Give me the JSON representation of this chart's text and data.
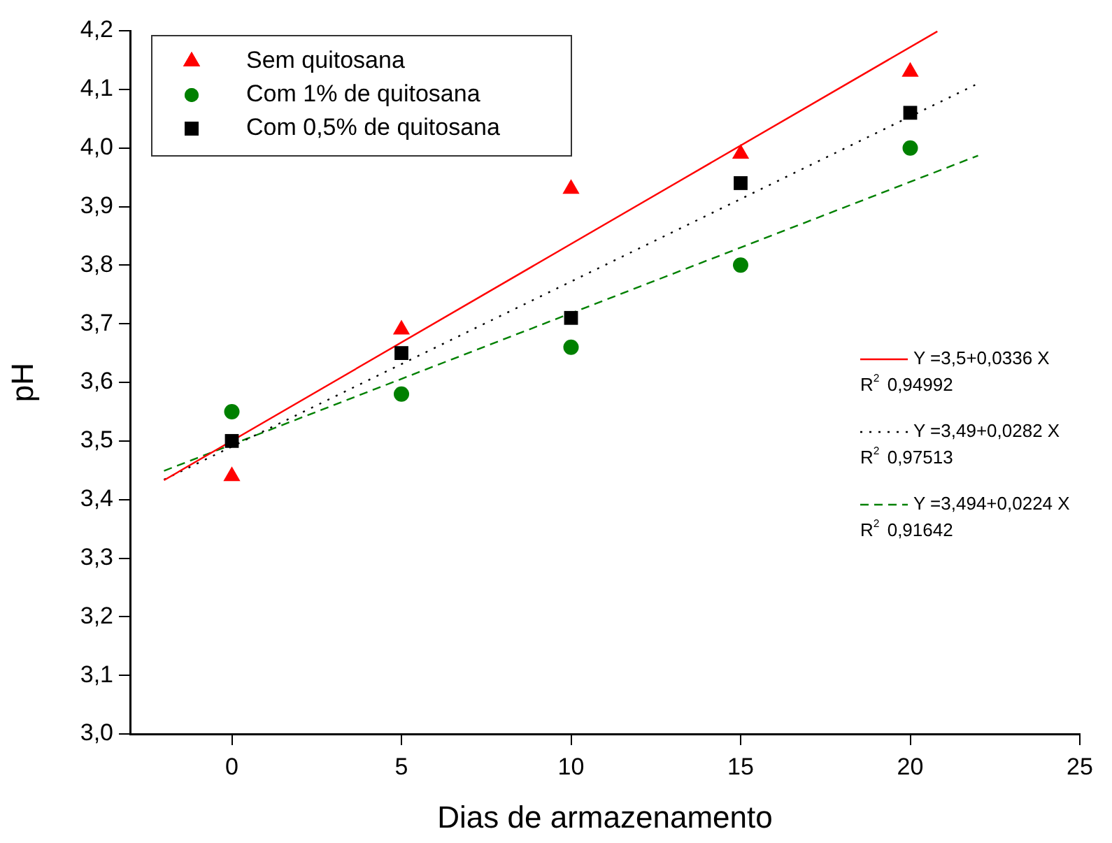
{
  "chart_data": {
    "type": "scatter",
    "xlabel": "Dias de armazenamento",
    "ylabel": "pH",
    "xlim": [
      -3,
      25
    ],
    "xticks": [
      0,
      5,
      10,
      15,
      20,
      25
    ],
    "ylim": [
      3.0,
      4.2
    ],
    "yticks": [
      {
        "value": 3.0,
        "label": "3,0"
      },
      {
        "value": 3.1,
        "label": "3,1"
      },
      {
        "value": 3.2,
        "label": "3,2"
      },
      {
        "value": 3.3,
        "label": "3,3"
      },
      {
        "value": 3.4,
        "label": "3,4"
      },
      {
        "value": 3.5,
        "label": "3,5"
      },
      {
        "value": 3.6,
        "label": "3,6"
      },
      {
        "value": 3.7,
        "label": "3,7"
      },
      {
        "value": 3.8,
        "label": "3,8"
      },
      {
        "value": 3.9,
        "label": "3,9"
      },
      {
        "value": 4.0,
        "label": "4,0"
      },
      {
        "value": 4.1,
        "label": "4,1"
      },
      {
        "value": 4.2,
        "label": "4,2"
      }
    ],
    "grid": false,
    "legend": "top left",
    "x": [
      0,
      5,
      10,
      15,
      20
    ],
    "series": [
      {
        "name": "Sem quitosana",
        "color": "#ff0000",
        "marker": "triangle",
        "values": [
          3.44,
          3.69,
          3.93,
          3.99,
          4.13
        ]
      },
      {
        "name": "Com 1% de quitosana",
        "color": "#008000",
        "marker": "circle",
        "values": [
          3.55,
          3.58,
          3.66,
          3.8,
          4.0
        ]
      },
      {
        "name": "Com 0,5% de quitosana",
        "color": "#000000",
        "marker": "square",
        "values": [
          3.5,
          3.65,
          3.71,
          3.94,
          4.06
        ]
      },
      {
        "name": "Y =3,5+0,0336 X",
        "type": "line",
        "color": "#ff0000",
        "marker": "none",
        "line_style": "solid",
        "x": [
          -2,
          20.8
        ],
        "values": [
          3.433,
          4.199
        ]
      },
      {
        "name": "Y =3,49+0,0282 X",
        "type": "line",
        "color": "#000000",
        "marker": "none",
        "line_style": "dotted",
        "x": [
          -2,
          22
        ],
        "values": [
          3.434,
          4.11
        ]
      },
      {
        "name": "Y =3,494+0,0224 X",
        "type": "line",
        "color": "#008000",
        "marker": "none",
        "line_style": "dashed",
        "x": [
          -2,
          22
        ],
        "values": [
          3.449,
          3.987
        ]
      }
    ],
    "annotations": [
      "R$^{2}$ 0,94992",
      "R$^{2}$ 0,97513",
      "R$^{2}$ 0,91642"
    ]
  }
}
